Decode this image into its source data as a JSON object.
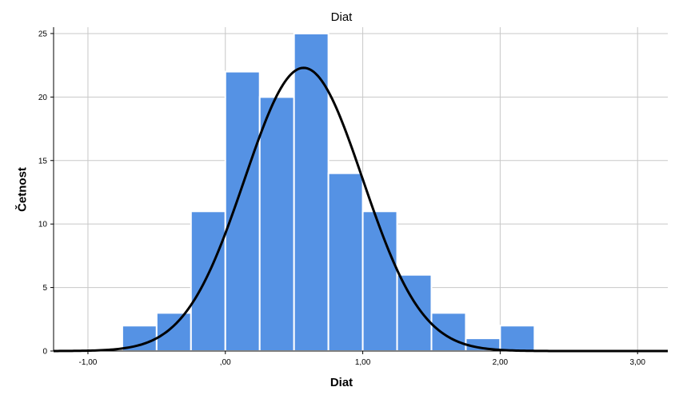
{
  "chart_data": {
    "type": "bar",
    "title": "Diat",
    "xlabel": "Diat",
    "ylabel": "Četnost",
    "xlim": [
      -1.25,
      3.22
    ],
    "ylim": [
      0,
      25.5
    ],
    "x_ticks": [
      -1,
      0,
      1,
      2,
      3
    ],
    "x_tick_labels": [
      "-1,00",
      ",00",
      "1,00",
      "2,00",
      "3,00"
    ],
    "y_ticks": [
      0,
      5,
      10,
      15,
      20,
      25
    ],
    "y_tick_labels": [
      "0",
      "5",
      "10",
      "15",
      "20",
      "25"
    ],
    "bin_width": 0.25,
    "bins": [
      {
        "start": -0.75,
        "count": 2
      },
      {
        "start": -0.5,
        "count": 3
      },
      {
        "start": -0.25,
        "count": 11
      },
      {
        "start": 0.0,
        "count": 22
      },
      {
        "start": 0.25,
        "count": 20
      },
      {
        "start": 0.5,
        "count": 25
      },
      {
        "start": 0.75,
        "count": 14
      },
      {
        "start": 1.0,
        "count": 11
      },
      {
        "start": 1.25,
        "count": 6
      },
      {
        "start": 1.5,
        "count": 3
      },
      {
        "start": 1.75,
        "count": 1
      },
      {
        "start": 2.0,
        "count": 2
      }
    ],
    "normal_curve": {
      "mean": 0.57,
      "sd": 0.43,
      "peak": 22.3
    },
    "grid": true,
    "colors": {
      "bar": "#5592e4",
      "bar_edge": "#ffffff",
      "curve": "#000000",
      "grid": "#c8c8c8",
      "axis": "#000000"
    }
  }
}
